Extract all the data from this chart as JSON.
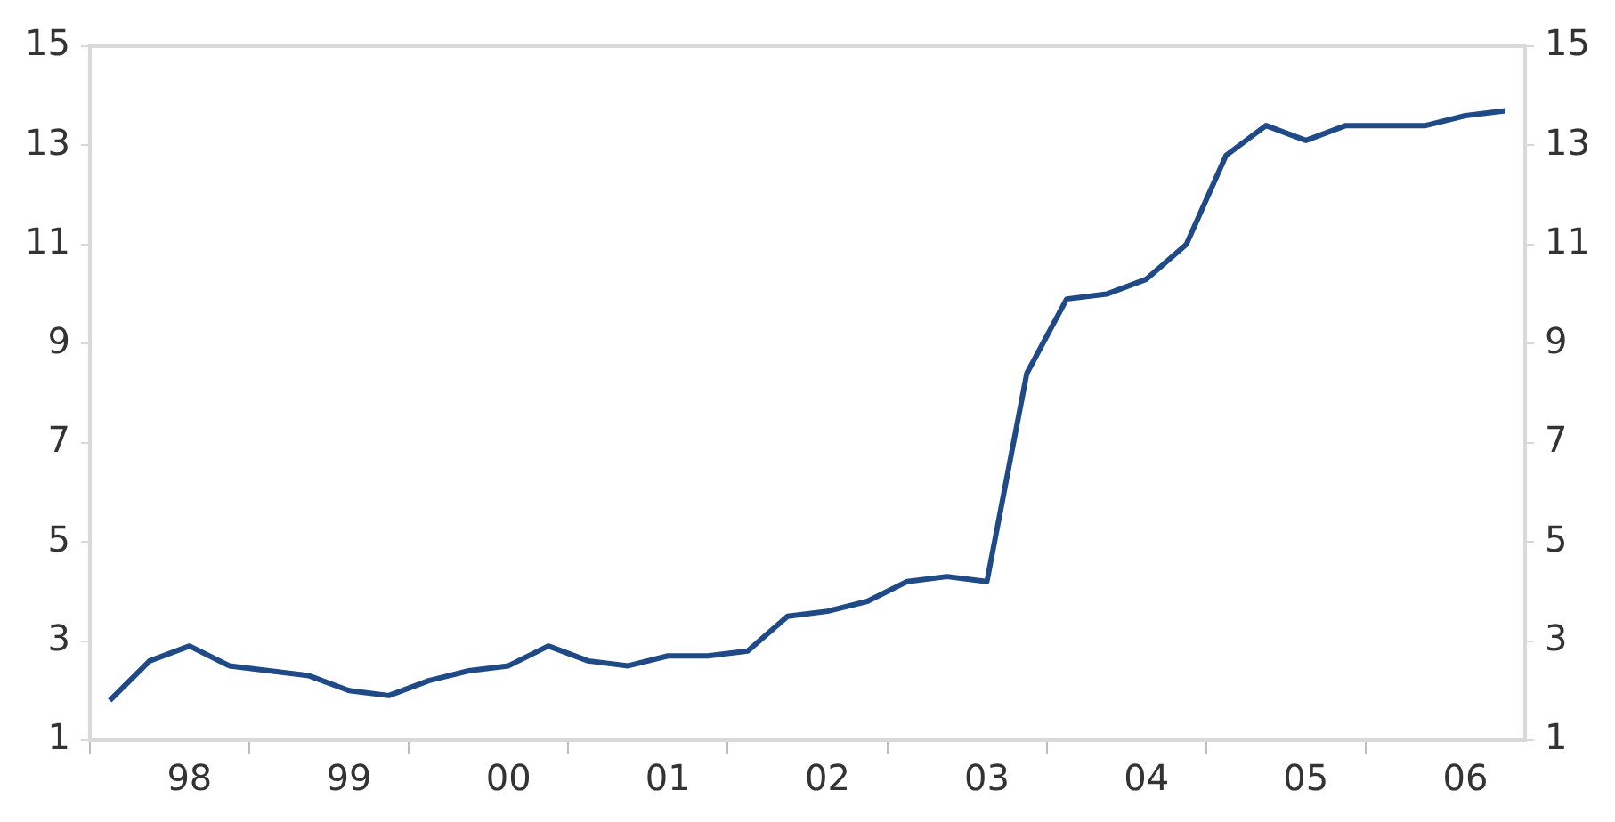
{
  "chart_data": {
    "type": "line",
    "categories": [
      null,
      null,
      "98",
      null,
      null,
      null,
      "99",
      null,
      null,
      null,
      "00",
      null,
      null,
      null,
      "01",
      null,
      null,
      null,
      "02",
      null,
      null,
      null,
      "03",
      null,
      null,
      null,
      "04",
      null,
      null,
      null,
      "05",
      null,
      null,
      null,
      "06",
      null
    ],
    "series": [
      {
        "color": "#1f4a85",
        "values": [
          1.8,
          2.6,
          2.9,
          2.5,
          2.4,
          2.3,
          2.0,
          1.9,
          2.2,
          2.4,
          2.5,
          2.9,
          2.6,
          2.5,
          2.7,
          2.7,
          2.8,
          3.5,
          3.6,
          3.8,
          4.2,
          4.3,
          4.2,
          8.4,
          9.9,
          10.0,
          10.3,
          11.0,
          12.8,
          13.4,
          13.1,
          13.4,
          13.4,
          13.4,
          13.6,
          13.7
        ]
      }
    ],
    "ylim": [
      1,
      15
    ],
    "yticks": [
      1,
      3,
      5,
      7,
      9,
      11,
      13,
      15
    ],
    "y2lim": [
      1,
      15
    ],
    "y2ticks": [
      1,
      3,
      5,
      7,
      9,
      11,
      13,
      15
    ],
    "grid": false,
    "legend": false,
    "marker": "none",
    "line_style": "solid"
  }
}
